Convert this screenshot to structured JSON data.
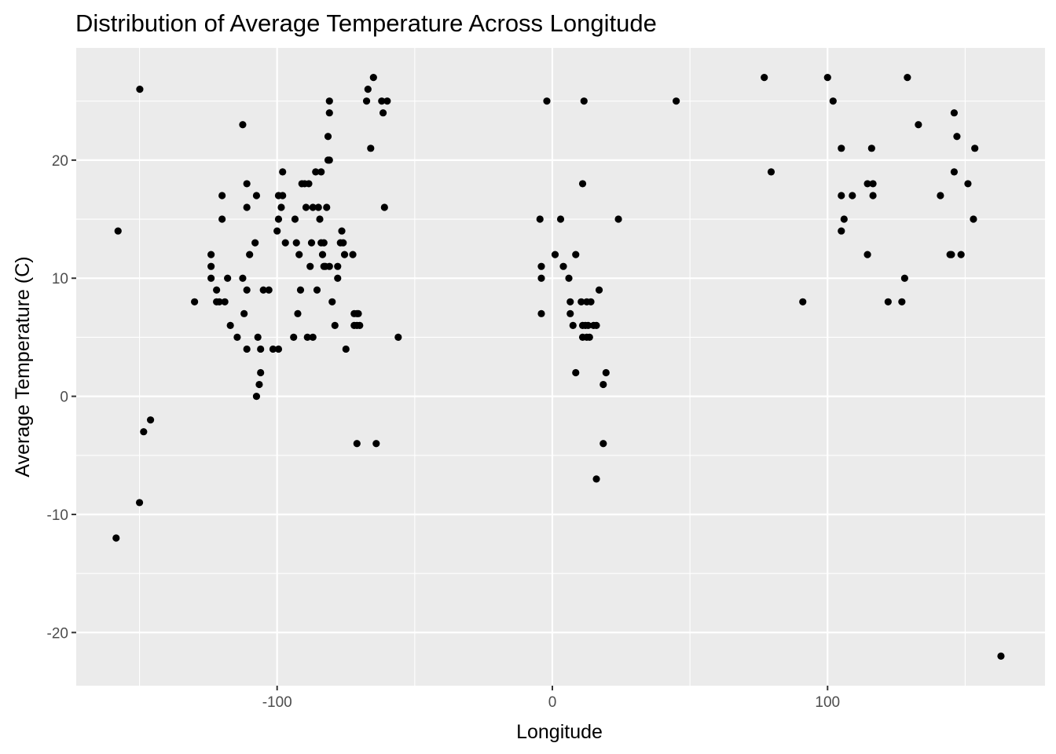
{
  "chart_data": {
    "type": "scatter",
    "title": "Distribution of Average Temperature Across Longitude",
    "xlabel": "Longitude",
    "ylabel": "Average Temperature (C)",
    "xlim": [
      -173,
      179
    ],
    "ylim": [
      -24.5,
      29.5
    ],
    "x_ticks": [
      -100,
      0,
      100
    ],
    "x_tick_labels": [
      "-100",
      "0",
      "100"
    ],
    "y_ticks": [
      -20,
      -10,
      0,
      10,
      20
    ],
    "y_tick_labels": [
      "-20",
      "-10",
      "0",
      "10",
      "20"
    ],
    "grid": true,
    "legend": "none",
    "point_color": "#000000",
    "panel_color": "#ebebeb",
    "points": [
      [
        -157.8,
        14
      ],
      [
        -150,
        -9
      ],
      [
        -149.9,
        26
      ],
      [
        -148.5,
        -3
      ],
      [
        -146,
        -2
      ],
      [
        -158.5,
        -12
      ],
      [
        -130,
        8
      ],
      [
        -124,
        10
      ],
      [
        -124,
        11
      ],
      [
        -124,
        12
      ],
      [
        -122,
        9
      ],
      [
        -122,
        8
      ],
      [
        -121,
        8
      ],
      [
        -120,
        17
      ],
      [
        -120,
        15
      ],
      [
        -119,
        8
      ],
      [
        -118,
        10
      ],
      [
        -117,
        6
      ],
      [
        -114.5,
        5
      ],
      [
        -112.5,
        10
      ],
      [
        -112.5,
        23
      ],
      [
        -112,
        7
      ],
      [
        -111,
        9
      ],
      [
        -111,
        16
      ],
      [
        -111,
        18
      ],
      [
        -111,
        4
      ],
      [
        -110,
        12
      ],
      [
        -108,
        13
      ],
      [
        -107.5,
        17
      ],
      [
        -107,
        5
      ],
      [
        -107.5,
        0
      ],
      [
        -106.5,
        1
      ],
      [
        -106,
        2
      ],
      [
        -106,
        4
      ],
      [
        -105,
        9
      ],
      [
        -103,
        9
      ],
      [
        -101.5,
        4
      ],
      [
        -99.5,
        4
      ],
      [
        -100,
        14
      ],
      [
        -99.5,
        15
      ],
      [
        -99.5,
        17
      ],
      [
        -98.5,
        16
      ],
      [
        -98,
        19
      ],
      [
        -98,
        17
      ],
      [
        -97,
        13
      ],
      [
        -94,
        5
      ],
      [
        -93.5,
        15
      ],
      [
        -93,
        13
      ],
      [
        -92.5,
        7
      ],
      [
        -92,
        12
      ],
      [
        -91.5,
        9
      ],
      [
        -91,
        18
      ],
      [
        -90,
        18
      ],
      [
        -89.5,
        16
      ],
      [
        -89,
        5
      ],
      [
        -88.5,
        18
      ],
      [
        -88,
        11
      ],
      [
        -87.5,
        13
      ],
      [
        -87,
        16
      ],
      [
        -87,
        5
      ],
      [
        -86,
        19
      ],
      [
        -85.5,
        9
      ],
      [
        -85,
        16
      ],
      [
        -84.5,
        15
      ],
      [
        -84,
        19
      ],
      [
        -84,
        13
      ],
      [
        -83.5,
        12
      ],
      [
        -83,
        13
      ],
      [
        -83,
        11
      ],
      [
        -82.5,
        11
      ],
      [
        -82,
        16
      ],
      [
        -81.5,
        20
      ],
      [
        -81.5,
        22
      ],
      [
        -81,
        11
      ],
      [
        -81,
        24
      ],
      [
        -81,
        25
      ],
      [
        -81,
        20
      ],
      [
        -80,
        8
      ],
      [
        -79,
        6
      ],
      [
        -78,
        11
      ],
      [
        -78,
        10
      ],
      [
        -77,
        13
      ],
      [
        -76.5,
        14
      ],
      [
        -76,
        13
      ],
      [
        -75.5,
        12
      ],
      [
        -75,
        4
      ],
      [
        -72.5,
        12
      ],
      [
        -72,
        7
      ],
      [
        -72,
        6
      ],
      [
        -71,
        7
      ],
      [
        -71,
        -4
      ],
      [
        -71,
        6
      ],
      [
        -70.5,
        7
      ],
      [
        -70,
        6
      ],
      [
        -67.5,
        25
      ],
      [
        -67,
        26
      ],
      [
        -66,
        21
      ],
      [
        -65,
        27
      ],
      [
        -64,
        -4
      ],
      [
        -62,
        25
      ],
      [
        -61.5,
        24
      ],
      [
        -61,
        16
      ],
      [
        -60,
        25
      ],
      [
        -56,
        5
      ],
      [
        -4.5,
        15
      ],
      [
        -4,
        11
      ],
      [
        -4,
        10
      ],
      [
        -4,
        7
      ],
      [
        -2,
        25
      ],
      [
        1,
        12
      ],
      [
        3,
        15
      ],
      [
        4,
        11
      ],
      [
        6,
        10
      ],
      [
        6.5,
        8
      ],
      [
        6.5,
        7
      ],
      [
        7.5,
        6
      ],
      [
        8.5,
        2
      ],
      [
        8.5,
        12
      ],
      [
        10.5,
        8
      ],
      [
        11,
        6
      ],
      [
        11,
        18
      ],
      [
        11,
        5
      ],
      [
        11.5,
        25
      ],
      [
        12,
        6
      ],
      [
        12.5,
        8
      ],
      [
        12.5,
        5
      ],
      [
        13,
        6
      ],
      [
        13.5,
        5
      ],
      [
        14,
        8
      ],
      [
        15,
        6
      ],
      [
        16,
        -7
      ],
      [
        16,
        6
      ],
      [
        17,
        9
      ],
      [
        18.5,
        -4
      ],
      [
        18.5,
        1
      ],
      [
        19.5,
        2
      ],
      [
        24,
        15
      ],
      [
        45,
        25
      ],
      [
        77,
        27
      ],
      [
        79.5,
        19
      ],
      [
        91,
        8
      ],
      [
        100,
        27
      ],
      [
        102,
        25
      ],
      [
        105,
        14
      ],
      [
        105,
        17
      ],
      [
        105,
        21
      ],
      [
        106,
        15
      ],
      [
        109,
        17
      ],
      [
        114.5,
        12
      ],
      [
        114.5,
        18
      ],
      [
        116,
        21
      ],
      [
        116.5,
        18
      ],
      [
        116.5,
        17
      ],
      [
        122,
        8
      ],
      [
        127,
        8
      ],
      [
        128,
        10
      ],
      [
        129,
        27
      ],
      [
        133,
        23
      ],
      [
        141,
        17
      ],
      [
        144.5,
        12
      ],
      [
        145,
        12
      ],
      [
        146,
        24
      ],
      [
        146,
        19
      ],
      [
        147,
        22
      ],
      [
        148.5,
        12
      ],
      [
        151,
        18
      ],
      [
        153,
        15
      ],
      [
        153.5,
        21
      ],
      [
        163,
        -22
      ]
    ]
  }
}
